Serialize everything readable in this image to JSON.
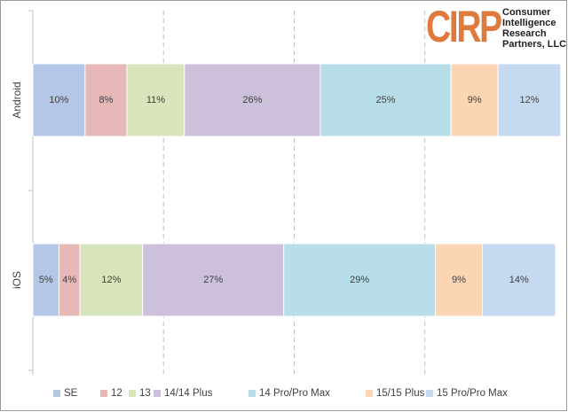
{
  "logo": {
    "mark": "CIRP",
    "lines": [
      "Consumer",
      "Intelligence",
      "Research",
      "Partners, LLC"
    ]
  },
  "chart_data": {
    "type": "bar",
    "orientation": "horizontal",
    "stacked": "percent",
    "categories": [
      "Android",
      "iOS"
    ],
    "series": [
      {
        "name": "SE",
        "color": "#b4c7e7",
        "values": [
          10,
          5
        ]
      },
      {
        "name": "12",
        "color": "#e6b8b7",
        "values": [
          8,
          4
        ]
      },
      {
        "name": "13",
        "color": "#d8e4bc",
        "values": [
          11,
          12
        ]
      },
      {
        "name": "14/14 Plus",
        "color": "#ccc0da",
        "values": [
          26,
          27
        ]
      },
      {
        "name": "14 Pro/Pro Max",
        "color": "#b7dee8",
        "values": [
          25,
          29
        ]
      },
      {
        "name": "15/15 Plus",
        "color": "#fcd5b4",
        "values": [
          9,
          9
        ]
      },
      {
        "name": "15 Pro/Pro Max",
        "color": "#c5d9f1",
        "values": [
          12,
          14
        ]
      }
    ],
    "data_labels": [
      [
        "10%",
        "8%",
        "11%",
        "26%",
        "25%",
        "9%",
        "12%"
      ],
      [
        "5%",
        "4%",
        "12%",
        "27%",
        "29%",
        "9%",
        "14%"
      ]
    ],
    "title": "",
    "xlabel": "",
    "ylabel": "",
    "xlim": [
      0,
      100
    ],
    "grid": "vertical dashed",
    "legend": "bottom"
  }
}
